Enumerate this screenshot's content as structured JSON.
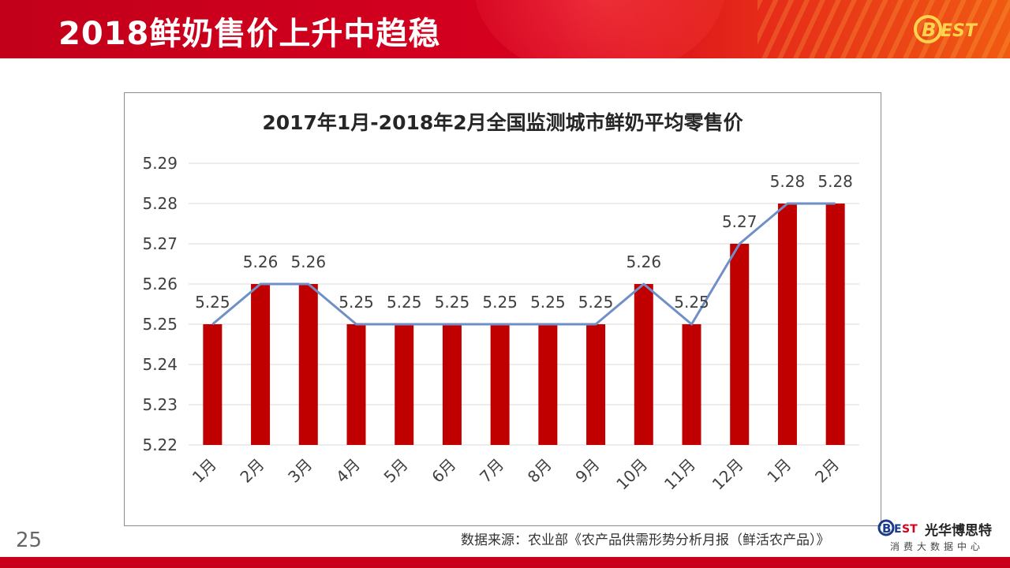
{
  "slide": {
    "title": "2018鲜奶售价上升中趋稳",
    "page_number": "25",
    "source": "数据来源：农业部《农产品供需形势分析月报（鲜活农产品）》"
  },
  "brand": {
    "logo_text": "BEST",
    "name": "光华博思特",
    "tagline": "消费大数据中心",
    "logo_icon": "best-logo-icon"
  },
  "colors": {
    "banner": "#d6001f",
    "bar": "#c00000",
    "line": "#6f8fc6",
    "bottom_bar": "#c8001c"
  },
  "chart_data": {
    "type": "bar",
    "title": "2017年1月-2018年2月全国监测城市鲜奶平均零售价",
    "categories": [
      "1月",
      "2月",
      "3月",
      "4月",
      "5月",
      "6月",
      "7月",
      "8月",
      "9月",
      "10月",
      "11月",
      "12月",
      "1月",
      "2月"
    ],
    "series": [
      {
        "type": "bar",
        "values": [
          5.25,
          5.26,
          5.26,
          5.25,
          5.25,
          5.25,
          5.25,
          5.25,
          5.25,
          5.26,
          5.25,
          5.27,
          5.28,
          5.28
        ]
      },
      {
        "type": "line",
        "values": [
          5.25,
          5.26,
          5.26,
          5.25,
          5.25,
          5.25,
          5.25,
          5.25,
          5.25,
          5.26,
          5.25,
          5.27,
          5.28,
          5.28
        ]
      }
    ],
    "data_labels": [
      "5.25",
      "5.26",
      "5.26",
      "5.25",
      "5.25",
      "5.25",
      "5.25",
      "5.25",
      "5.25",
      "5.26",
      "5.25",
      "5.27",
      "5.28",
      "5.28"
    ],
    "ylim": [
      5.22,
      5.29
    ],
    "yticks": [
      "5.22",
      "5.23",
      "5.24",
      "5.25",
      "5.26",
      "5.27",
      "5.28",
      "5.29"
    ],
    "xlabel": "",
    "ylabel": "",
    "grid": true,
    "legend": "none"
  }
}
